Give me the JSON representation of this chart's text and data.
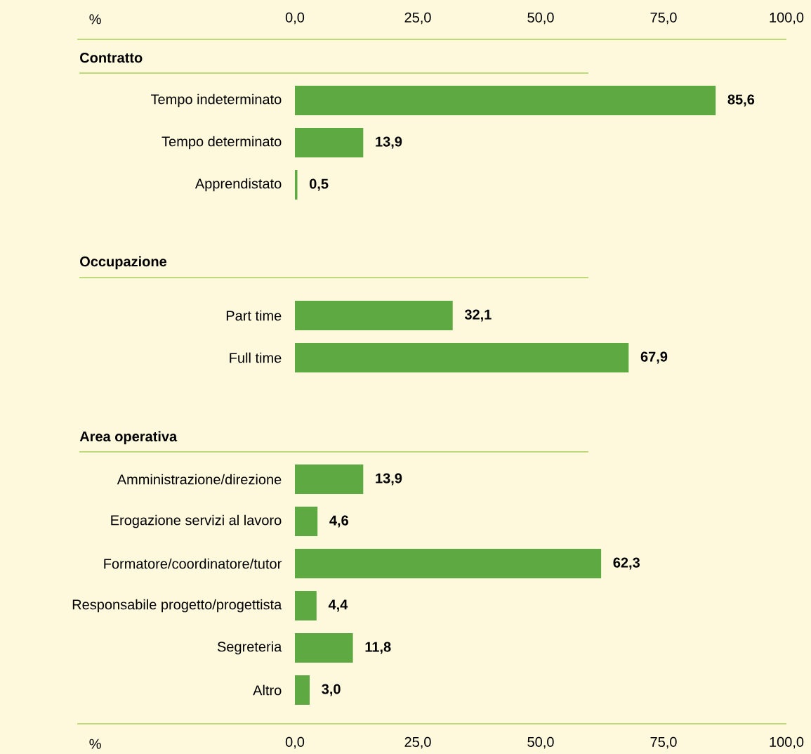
{
  "chart_data": [
    {
      "type": "bar",
      "orientation": "horizontal",
      "title": "Contratto",
      "categories": [
        "Tempo indeterminato",
        "Tempo determinato",
        "Apprendistato"
      ],
      "values": [
        85.6,
        13.9,
        0.5
      ],
      "value_labels": [
        "85,6",
        "13,9",
        "0,5"
      ],
      "color": "#5ea942",
      "xlim": [
        0,
        100
      ],
      "x2lim": [
        0,
        100
      ],
      "x2label": "%",
      "x2ticks": [
        {
          "value": 0,
          "label": "0,0"
        },
        {
          "value": 25,
          "label": "25,0"
        },
        {
          "value": 50,
          "label": "50,0"
        },
        {
          "value": 75,
          "label": "75,0"
        },
        {
          "value": 100,
          "label": "100,0"
        }
      ],
      "tick_labels": "y"
    },
    {
      "type": "bar",
      "orientation": "horizontal",
      "title": "Occupazione",
      "categories": [
        "Part time",
        "Full time"
      ],
      "values": [
        32.1,
        67.9
      ],
      "value_labels": [
        "32,1",
        "67,9"
      ],
      "color": "#5ea942",
      "xlim": [
        0,
        100
      ],
      "tick_labels": "y"
    },
    {
      "type": "bar",
      "orientation": "horizontal",
      "title": "Area operativa",
      "categories": [
        "Amministrazione/direzione",
        "Erogazione servizi al lavoro",
        "Formatore/coordinatore/tutor",
        "Responsabile progetto/progettista",
        "Segreteria",
        "Altro"
      ],
      "values": [
        13.9,
        4.6,
        62.3,
        4.4,
        11.8,
        3.0
      ],
      "value_labels": [
        "13,9",
        "4,6",
        "62,3",
        "4,4",
        "11,8",
        "3,0"
      ],
      "color": "#5ea942",
      "xlim": [
        0,
        100
      ],
      "xlabel": "%",
      "xticks": [
        {
          "value": 0,
          "label": "0,0"
        },
        {
          "value": 25,
          "label": "25,0"
        },
        {
          "value": 50,
          "label": "50,0"
        },
        {
          "value": 75,
          "label": "75,0"
        },
        {
          "value": 100,
          "label": "100,0"
        }
      ]
    }
  ]
}
